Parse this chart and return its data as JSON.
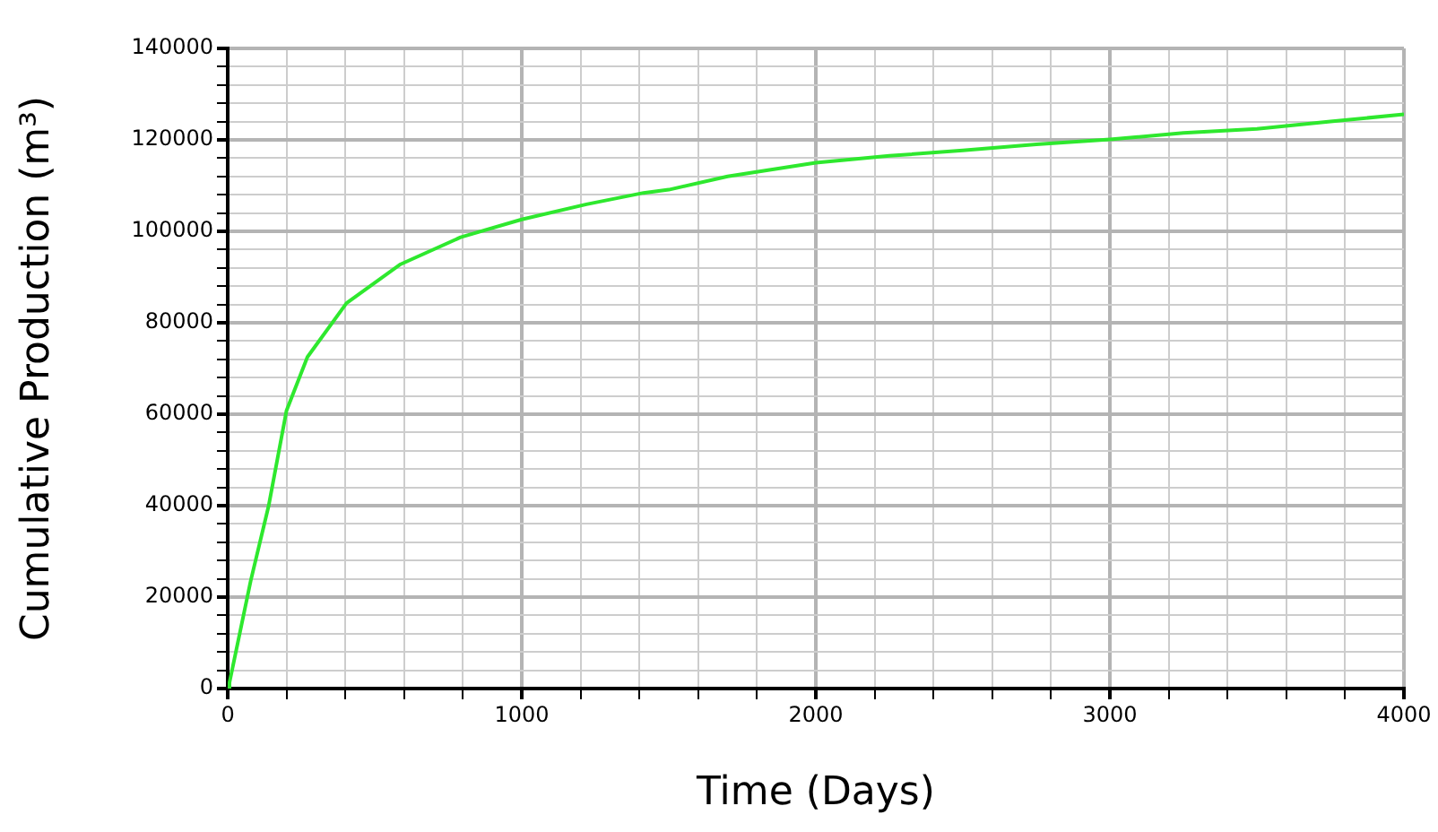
{
  "chart_data": {
    "type": "line",
    "xlabel": "Time (Days)",
    "ylabel": "Cumulative Production (m³)",
    "x": [
      0,
      6,
      78,
      139,
      200,
      271,
      404,
      588,
      792,
      1000,
      1220,
      1414,
      1500,
      1700,
      2000,
      2250,
      2500,
      2750,
      3000,
      3250,
      3500,
      3750,
      4000
    ],
    "series": [
      {
        "color": "#2ee82e",
        "values": [
          0,
          1300,
          23500,
          39900,
          60800,
          72500,
          84300,
          92800,
          98700,
          102600,
          105900,
          108400,
          109100,
          112000,
          115000,
          116500,
          117700,
          119000,
          120100,
          121500,
          122400,
          124000,
          125600
        ]
      }
    ],
    "xlim": [
      0,
      4000
    ],
    "xticks": [
      0,
      {
        "value": 200,
        "label": null
      },
      {
        "value": 400,
        "label": null
      },
      {
        "value": 600,
        "label": null
      },
      {
        "value": 800,
        "label": null
      },
      1000,
      {
        "value": 1200,
        "label": null
      },
      {
        "value": 1400,
        "label": null
      },
      {
        "value": 1600,
        "label": null
      },
      {
        "value": 1800,
        "label": null
      },
      2000,
      {
        "value": 2200,
        "label": null
      },
      {
        "value": 2400,
        "label": null
      },
      {
        "value": 2600,
        "label": null
      },
      {
        "value": 2800,
        "label": null
      },
      3000,
      {
        "value": 3200,
        "label": null
      },
      {
        "value": 3400,
        "label": null
      },
      {
        "value": 3600,
        "label": null
      },
      {
        "value": 3800,
        "label": null
      },
      4000
    ],
    "ylim": [
      0,
      140000
    ],
    "yticks": [
      0,
      {
        "value": 4000,
        "label": null
      },
      {
        "value": 8000,
        "label": null
      },
      {
        "value": 12000,
        "label": null
      },
      {
        "value": 16000,
        "label": null
      },
      20000,
      {
        "value": 24000,
        "label": null
      },
      {
        "value": 28000,
        "label": null
      },
      {
        "value": 32000,
        "label": null
      },
      {
        "value": 36000,
        "label": null
      },
      40000,
      {
        "value": 44000,
        "label": null
      },
      {
        "value": 48000,
        "label": null
      },
      {
        "value": 52000,
        "label": null
      },
      {
        "value": 56000,
        "label": null
      },
      60000,
      {
        "value": 64000,
        "label": null
      },
      {
        "value": 68000,
        "label": null
      },
      {
        "value": 72000,
        "label": null
      },
      {
        "value": 76000,
        "label": null
      },
      80000,
      {
        "value": 84000,
        "label": null
      },
      {
        "value": 88000,
        "label": null
      },
      {
        "value": 92000,
        "label": null
      },
      {
        "value": 96000,
        "label": null
      },
      100000,
      {
        "value": 104000,
        "label": null
      },
      {
        "value": 108000,
        "label": null
      },
      {
        "value": 112000,
        "label": null
      },
      {
        "value": 116000,
        "label": null
      },
      120000,
      {
        "value": 124000,
        "label": null
      },
      {
        "value": 128000,
        "label": null
      },
      {
        "value": 132000,
        "label": null
      },
      {
        "value": 136000,
        "label": null
      },
      140000
    ],
    "grid": true,
    "legend": false,
    "marker": "none",
    "line_style": "solid"
  }
}
